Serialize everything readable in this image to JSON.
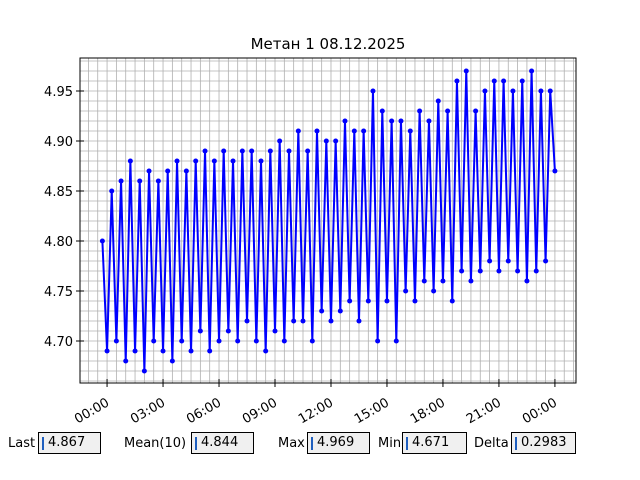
{
  "chart_data": {
    "type": "line",
    "title": "Метан 1 08.12.2025",
    "x": [
      -0.25,
      0,
      0.25,
      0.5,
      0.75,
      1,
      1.25,
      1.5,
      1.75,
      2,
      2.25,
      2.5,
      2.75,
      3,
      3.25,
      3.5,
      3.75,
      4,
      4.25,
      4.5,
      4.75,
      5,
      5.25,
      5.5,
      5.75,
      6,
      6.25,
      6.5,
      6.75,
      7,
      7.25,
      7.5,
      7.75,
      8,
      8.25,
      8.5,
      8.75,
      9,
      9.25,
      9.5,
      9.75,
      10,
      10.25,
      10.5,
      10.75,
      11,
      11.25,
      11.5,
      11.75,
      12,
      12.25,
      12.5,
      12.75,
      13,
      13.25,
      13.5,
      13.75,
      14,
      14.25,
      14.5,
      14.75,
      15,
      15.25,
      15.5,
      15.75,
      16,
      16.25,
      16.5,
      16.75,
      17,
      17.25,
      17.5,
      17.75,
      18,
      18.25,
      18.5,
      18.75,
      19,
      19.25,
      19.5,
      19.75,
      20,
      20.25,
      20.5,
      20.75,
      21,
      21.25,
      21.5,
      21.75,
      22,
      22.25,
      22.5,
      22.75,
      23,
      23.25,
      23.5,
      23.75,
      24
    ],
    "series": [
      {
        "color": "#0000ff",
        "values": [
          4.8,
          4.69,
          4.85,
          4.7,
          4.86,
          4.68,
          4.88,
          4.69,
          4.86,
          4.67,
          4.87,
          4.7,
          4.86,
          4.69,
          4.87,
          4.68,
          4.88,
          4.7,
          4.87,
          4.69,
          4.88,
          4.71,
          4.89,
          4.69,
          4.88,
          4.7,
          4.89,
          4.71,
          4.88,
          4.7,
          4.89,
          4.72,
          4.89,
          4.7,
          4.88,
          4.69,
          4.89,
          4.71,
          4.9,
          4.7,
          4.89,
          4.72,
          4.91,
          4.72,
          4.89,
          4.7,
          4.91,
          4.73,
          4.9,
          4.72,
          4.9,
          4.73,
          4.92,
          4.74,
          4.91,
          4.72,
          4.91,
          4.74,
          4.95,
          4.7,
          4.93,
          4.74,
          4.92,
          4.7,
          4.92,
          4.75,
          4.91,
          4.74,
          4.93,
          4.76,
          4.92,
          4.75,
          4.94,
          4.76,
          4.93,
          4.74,
          4.96,
          4.77,
          4.97,
          4.76,
          4.93,
          4.77,
          4.95,
          4.78,
          4.96,
          4.77,
          4.96,
          4.78,
          4.95,
          4.77,
          4.96,
          4.76,
          4.97,
          4.77,
          4.95,
          4.78,
          4.95,
          4.87
        ]
      }
    ],
    "xlim": [
      -1.45,
      25.13
    ],
    "xticks": [
      {
        "value": 0,
        "label": "00:00"
      },
      {
        "value": 3,
        "label": "03:00"
      },
      {
        "value": 6,
        "label": "06:00"
      },
      {
        "value": 9,
        "label": "09:00"
      },
      {
        "value": 12,
        "label": "12:00"
      },
      {
        "value": 15,
        "label": "15:00"
      },
      {
        "value": 18,
        "label": "18:00"
      },
      {
        "value": 21,
        "label": "21:00"
      },
      {
        "value": 24,
        "label": "00:00"
      }
    ],
    "xminorticks": [
      -1,
      -0.5,
      0.5,
      1,
      1.5,
      2,
      2.5,
      3.5,
      4,
      4.5,
      5,
      5.5,
      6.5,
      7,
      7.5,
      8,
      8.5,
      9.5,
      10,
      10.5,
      11,
      11.5,
      12.5,
      13,
      13.5,
      14,
      14.5,
      15.5,
      16,
      16.5,
      17,
      17.5,
      18.5,
      19,
      19.5,
      20,
      20.5,
      21.5,
      22,
      22.5,
      23,
      23.5,
      24.5,
      25
    ],
    "ylim": [
      4.658,
      4.983
    ],
    "yticks": [
      {
        "value": 4.7,
        "label": "4.70"
      },
      {
        "value": 4.75,
        "label": "4.75"
      },
      {
        "value": 4.8,
        "label": "4.80"
      },
      {
        "value": 4.85,
        "label": "4.85"
      },
      {
        "value": 4.9,
        "label": "4.90"
      },
      {
        "value": 4.95,
        "label": "4.95"
      }
    ],
    "yminorticks": [
      4.66,
      4.67,
      4.68,
      4.69,
      4.71,
      4.72,
      4.73,
      4.74,
      4.76,
      4.77,
      4.78,
      4.79,
      4.81,
      4.82,
      4.83,
      4.84,
      4.86,
      4.87,
      4.88,
      4.89,
      4.91,
      4.92,
      4.93,
      4.94,
      4.96,
      4.97,
      4.98
    ],
    "grid": true
  },
  "stats": [
    {
      "label": "Last",
      "value": 4.867
    },
    {
      "label": "Mean(10)",
      "value": 4.844
    },
    {
      "label": "Max",
      "value": 4.969
    },
    {
      "label": "Min",
      "value": 4.671
    },
    {
      "label": "Delta",
      "value": 0.2983
    }
  ]
}
